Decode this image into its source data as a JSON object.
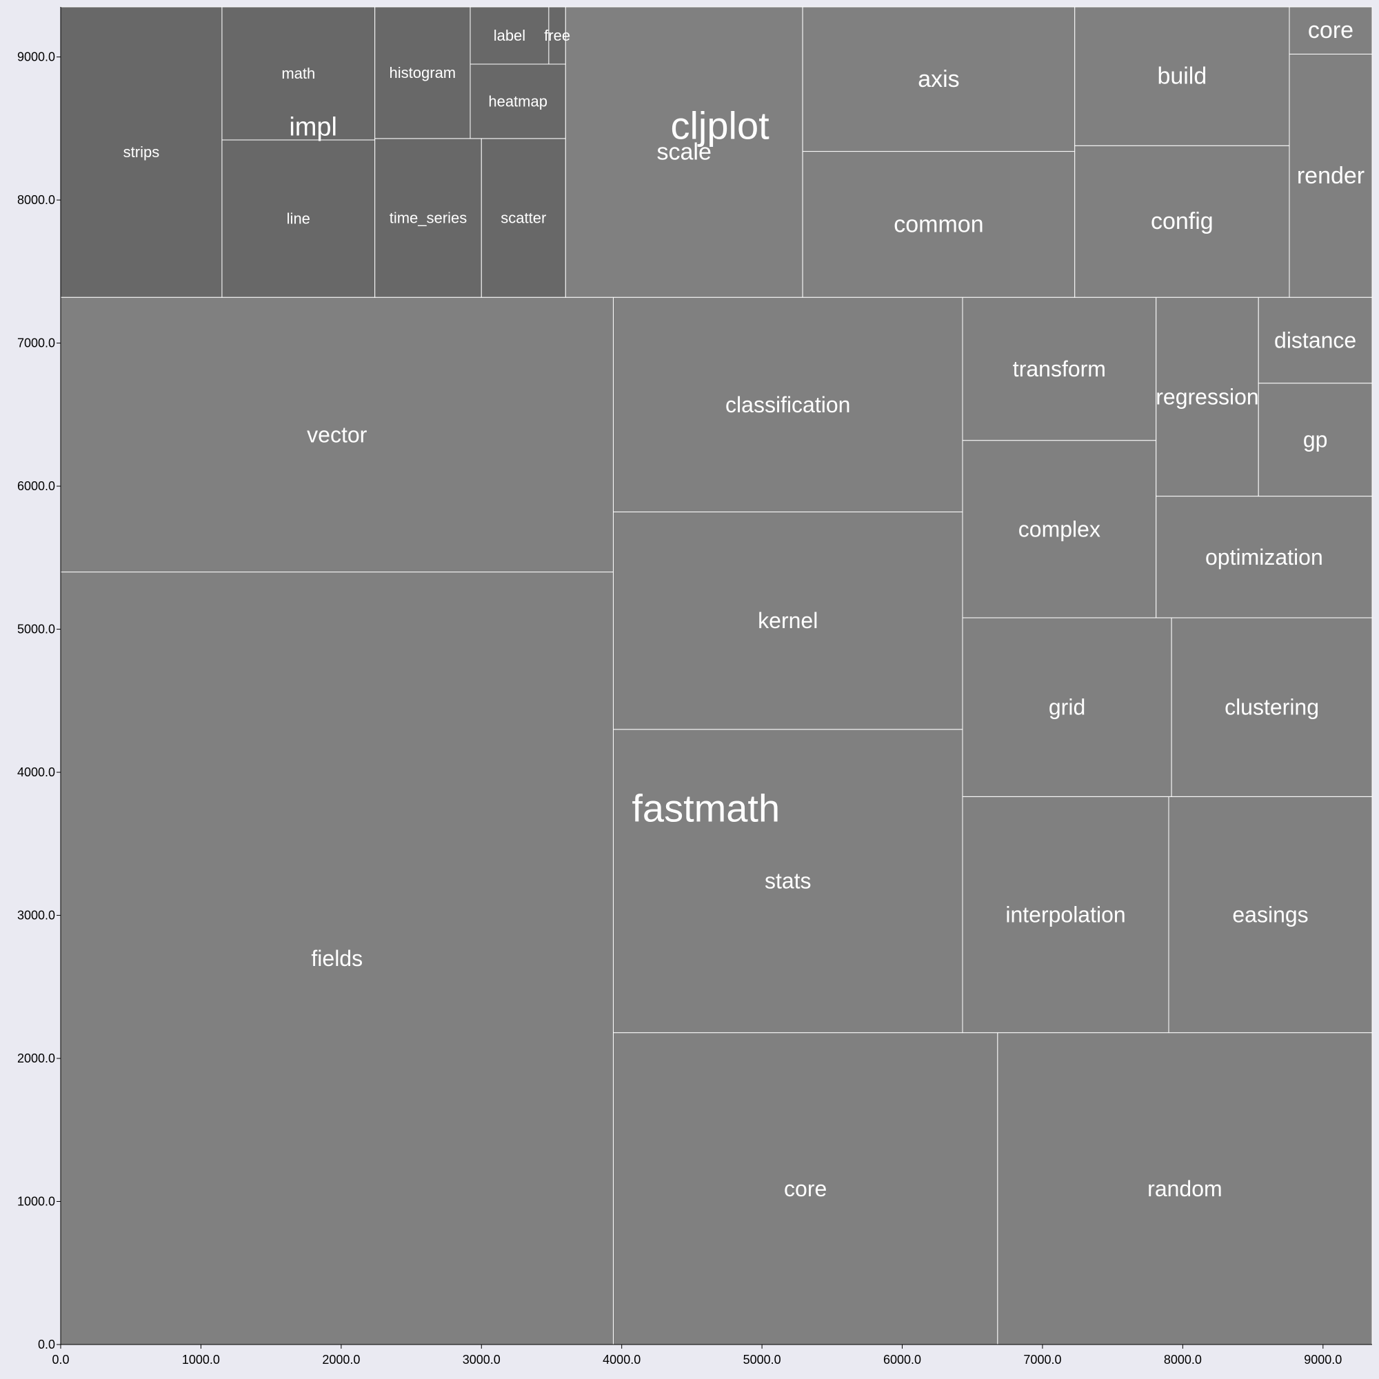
{
  "chart_data": {
    "type": "treemap",
    "xlim": [
      0,
      9350
    ],
    "ylim": [
      0,
      9350
    ],
    "x_ticks": [
      "0.0",
      "1000.0",
      "2000.0",
      "3000.0",
      "4000.0",
      "5000.0",
      "6000.0",
      "7000.0",
      "8000.0",
      "9000.0"
    ],
    "y_ticks": [
      "0.0",
      "1000.0",
      "2000.0",
      "3000.0",
      "4000.0",
      "5000.0",
      "6000.0",
      "7000.0",
      "8000.0",
      "9000.0"
    ],
    "colors": {
      "background": "#eaeaf2",
      "fastmath_cell": "#808080",
      "cljplot_cell": "#808080",
      "impl_cell": "#686868",
      "border": "#ffffff",
      "label": "#ffffff"
    },
    "groups": [
      {
        "name": "fastmath",
        "label_x": 4600,
        "label_y": 3750,
        "label_size": 56
      },
      {
        "name": "cljplot",
        "label_x": 4700,
        "label_y": 8520,
        "label_size": 56
      },
      {
        "name": "impl",
        "label_x": 1800,
        "label_y": 8510,
        "label_size": 38
      }
    ],
    "cells": [
      {
        "name": "fields",
        "group": "fastmath",
        "x0": 0,
        "x1": 3940,
        "y0": 0,
        "y1": 5400,
        "size": 32
      },
      {
        "name": "vector",
        "group": "fastmath",
        "x0": 0,
        "x1": 3940,
        "y0": 5400,
        "y1": 7320,
        "size": 32
      },
      {
        "name": "core",
        "group": "fastmath",
        "x0": 3940,
        "x1": 6680,
        "y0": 0,
        "y1": 2180,
        "size": 32
      },
      {
        "name": "random",
        "group": "fastmath",
        "x0": 6680,
        "x1": 9350,
        "y0": 0,
        "y1": 2180,
        "size": 32
      },
      {
        "name": "stats",
        "group": "fastmath",
        "x0": 3940,
        "x1": 6430,
        "y0": 2180,
        "y1": 4300,
        "size": 32
      },
      {
        "name": "kernel",
        "group": "fastmath",
        "x0": 3940,
        "x1": 6430,
        "y0": 4300,
        "y1": 5820,
        "size": 32
      },
      {
        "name": "classification",
        "group": "fastmath",
        "x0": 3940,
        "x1": 6430,
        "y0": 5820,
        "y1": 7320,
        "size": 32
      },
      {
        "name": "interpolation",
        "group": "fastmath",
        "x0": 6430,
        "x1": 7900,
        "y0": 2180,
        "y1": 3830,
        "size": 32
      },
      {
        "name": "easings",
        "group": "fastmath",
        "x0": 7900,
        "x1": 9350,
        "y0": 2180,
        "y1": 3830,
        "size": 32
      },
      {
        "name": "grid",
        "group": "fastmath",
        "x0": 6430,
        "x1": 7920,
        "y0": 3830,
        "y1": 5080,
        "size": 32
      },
      {
        "name": "clustering",
        "group": "fastmath",
        "x0": 7920,
        "x1": 9350,
        "y0": 3830,
        "y1": 5080,
        "size": 32
      },
      {
        "name": "complex",
        "group": "fastmath",
        "x0": 6430,
        "x1": 7810,
        "y0": 5080,
        "y1": 6320,
        "size": 32
      },
      {
        "name": "transform",
        "group": "fastmath",
        "x0": 6430,
        "x1": 7810,
        "y0": 6320,
        "y1": 7320,
        "size": 32
      },
      {
        "name": "optimization",
        "group": "fastmath",
        "x0": 7810,
        "x1": 9350,
        "y0": 5080,
        "y1": 5930,
        "size": 32
      },
      {
        "name": "regression",
        "group": "fastmath",
        "x0": 7810,
        "x1": 8540,
        "y0": 5930,
        "y1": 7320,
        "size": 32
      },
      {
        "name": "gp",
        "group": "fastmath",
        "x0": 8540,
        "x1": 9350,
        "y0": 5930,
        "y1": 6720,
        "size": 32
      },
      {
        "name": "distance",
        "group": "fastmath",
        "x0": 8540,
        "x1": 9350,
        "y0": 6720,
        "y1": 7320,
        "size": 32
      },
      {
        "name": "strips",
        "group": "impl",
        "x0": 0,
        "x1": 1150,
        "y0": 7320,
        "y1": 9350,
        "size": 22
      },
      {
        "name": "line",
        "group": "impl",
        "x0": 1150,
        "x1": 2240,
        "y0": 7320,
        "y1": 8420,
        "size": 22
      },
      {
        "name": "math",
        "group": "impl",
        "x0": 1150,
        "x1": 2240,
        "y0": 8420,
        "y1": 9350,
        "size": 22
      },
      {
        "name": "time_series",
        "group": "impl",
        "x0": 2240,
        "x1": 3000,
        "y0": 7320,
        "y1": 8430,
        "size": 22
      },
      {
        "name": "scatter",
        "group": "impl",
        "x0": 3000,
        "x1": 3600,
        "y0": 7320,
        "y1": 8430,
        "size": 22
      },
      {
        "name": "histogram",
        "group": "impl",
        "x0": 2240,
        "x1": 2920,
        "y0": 8430,
        "y1": 9350,
        "size": 22
      },
      {
        "name": "heatmap",
        "group": "impl",
        "x0": 2920,
        "x1": 3600,
        "y0": 8430,
        "y1": 8950,
        "size": 22
      },
      {
        "name": "label",
        "group": "impl",
        "x0": 2920,
        "x1": 3480,
        "y0": 8950,
        "y1": 9350,
        "size": 22
      },
      {
        "name": "free",
        "group": "impl",
        "x0": 3480,
        "x1": 3600,
        "y0": 8950,
        "y1": 9350,
        "size": 22
      },
      {
        "name": "scale",
        "group": "cljplot",
        "x0": 3600,
        "x1": 5290,
        "y0": 7320,
        "y1": 9350,
        "size": 34
      },
      {
        "name": "common",
        "group": "cljplot",
        "x0": 5290,
        "x1": 7230,
        "y0": 7320,
        "y1": 8340,
        "size": 34
      },
      {
        "name": "axis",
        "group": "cljplot",
        "x0": 5290,
        "x1": 7230,
        "y0": 8340,
        "y1": 9350,
        "size": 34
      },
      {
        "name": "config",
        "group": "cljplot",
        "x0": 7230,
        "x1": 8760,
        "y0": 7320,
        "y1": 8380,
        "size": 34
      },
      {
        "name": "build",
        "group": "cljplot",
        "x0": 7230,
        "x1": 8760,
        "y0": 8380,
        "y1": 9350,
        "size": 34
      },
      {
        "name": "render",
        "group": "cljplot",
        "x0": 8760,
        "x1": 9350,
        "y0": 7320,
        "y1": 9020,
        "size": 34
      },
      {
        "name": "core",
        "group": "cljplot",
        "x0": 8760,
        "x1": 9350,
        "y0": 9020,
        "y1": 9350,
        "size": 34
      }
    ]
  }
}
